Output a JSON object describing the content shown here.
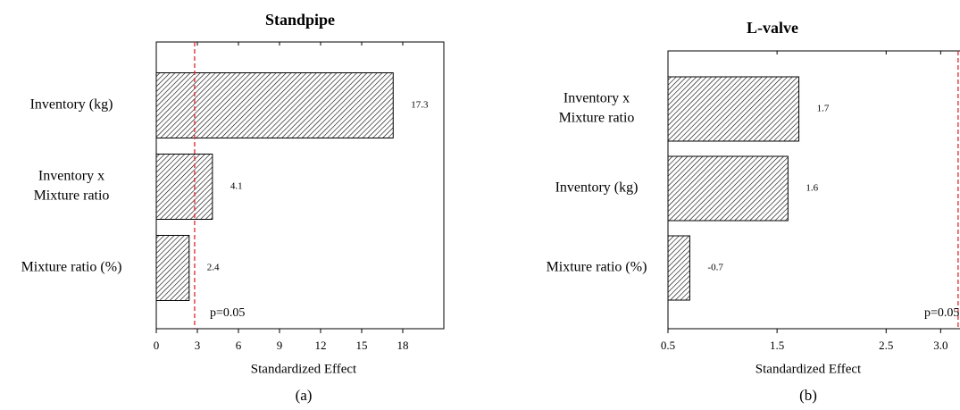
{
  "chart_data": [
    {
      "type": "bar",
      "orientation": "horizontal",
      "title": "Standpipe",
      "xlabel": "Standardized Effect",
      "caption": "(a)",
      "categories": [
        [
          "Inventory (kg)"
        ],
        [
          "Inventory x",
          "Mixture ratio"
        ],
        [
          "Mixture ratio (%)"
        ]
      ],
      "values": [
        17.3,
        4.1,
        2.4
      ],
      "xlim": [
        0,
        21
      ],
      "xticks": [
        0,
        3,
        6,
        9,
        12,
        15,
        18
      ],
      "reference_line": 2.8,
      "annotation": "p=0.05",
      "color": "#ffffff"
    },
    {
      "type": "bar",
      "orientation": "horizontal",
      "title": "L-valve",
      "xlabel": "Standardized Effect",
      "caption": "(b)",
      "categories": [
        [
          "Inventory x",
          "Mixture ratio"
        ],
        [
          "Inventory (kg)"
        ],
        [
          "Mixture ratio (%)"
        ]
      ],
      "values": [
        1.7,
        1.6,
        -0.7
      ],
      "xlim": [
        0.5,
        3.3
      ],
      "xticks": [
        0.5,
        1.5,
        2.5,
        {
          "value": 3,
          "label": "3.0"
        }
      ],
      "reference_line": 3.16,
      "annotation": "p=0.05",
      "color": "#ffffff"
    }
  ]
}
